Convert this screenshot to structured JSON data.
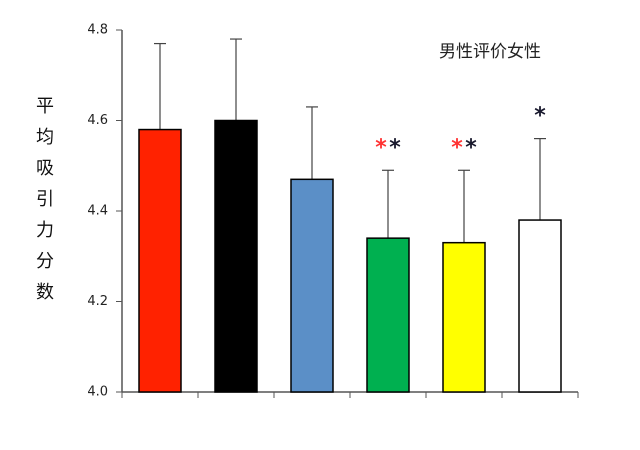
{
  "chart_data": {
    "type": "bar",
    "ylabel": "平均吸引力分数",
    "annotation": "男性评价女性",
    "categories": [
      null,
      null,
      null,
      null,
      null,
      null
    ],
    "values": [
      4.58,
      4.6,
      4.47,
      4.34,
      4.33,
      4.38
    ],
    "errors": [
      0.19,
      0.18,
      0.16,
      0.15,
      0.16,
      0.18
    ],
    "colors": [
      "#ff2200",
      "#000000",
      "#5b8fc7",
      "#00b050",
      "#ffff00",
      "#ffffff"
    ],
    "significance": [
      null,
      null,
      null,
      [
        {
          "text": "*",
          "color": "#ff3333"
        },
        {
          "text": "*",
          "color": "#1a1a2e"
        }
      ],
      [
        {
          "text": "*",
          "color": "#ff3333"
        },
        {
          "text": "*",
          "color": "#1a1a2e"
        }
      ],
      [
        {
          "text": "*",
          "color": "#1a1a2e"
        }
      ]
    ],
    "ylim": [
      4.0,
      4.8
    ],
    "yticks": [
      {
        "value": 4.0,
        "label": "4.0"
      },
      4.2,
      4.4,
      4.6,
      4.8
    ]
  }
}
